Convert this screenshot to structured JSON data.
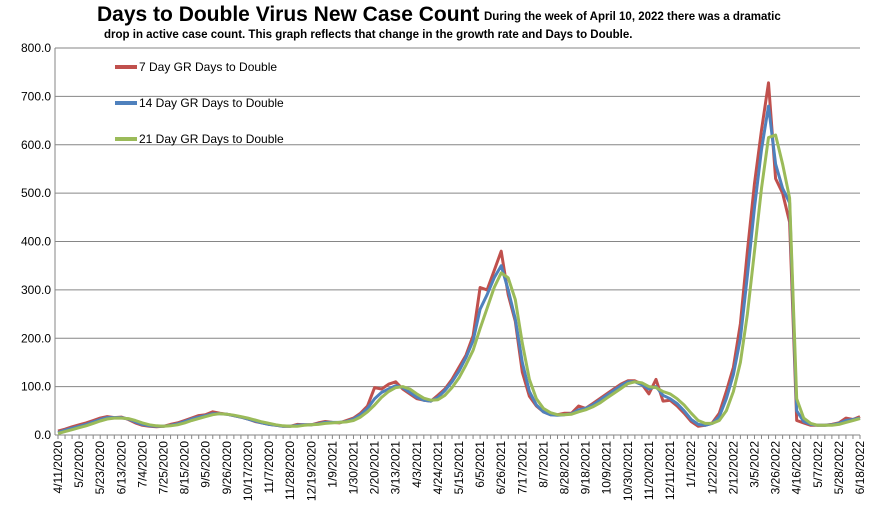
{
  "chart_data": {
    "type": "line",
    "title": "Days to Double Virus New Case Count",
    "subtitle_line1": "During the week of April 10, 2022 there was a dramatic",
    "subtitle_line2": "drop in active case count.  This graph reflects that change in the growth rate and Days to Double.",
    "ylim": [
      0,
      800
    ],
    "y_ticks": [
      "0.0",
      "100.0",
      "200.0",
      "300.0",
      "400.0",
      "500.0",
      "600.0",
      "700.0",
      "800.0"
    ],
    "x_ticks": [
      "4/11/2020",
      "5/2/2020",
      "5/23/2020",
      "6/13/2020",
      "7/4/2020",
      "7/25/2020",
      "8/15/2020",
      "9/5/2020",
      "9/26/2020",
      "10/17/2020",
      "11/7/2020",
      "11/28/2020",
      "12/19/2020",
      "1/9/2021",
      "1/30/2021",
      "2/20/2021",
      "3/13/2021",
      "4/3/2021",
      "4/24/2021",
      "5/15/2021",
      "6/5/2021",
      "6/26/2021",
      "7/17/2021",
      "8/7/2021",
      "8/28/2021",
      "9/18/2021",
      "10/9/2021",
      "10/30/2021",
      "11/20/2021",
      "12/11/2021",
      "1/1/2022",
      "1/22/2022",
      "2/12/2022",
      "3/5/2022",
      "3/26/2022",
      "4/16/2022",
      "5/7/2022",
      "5/28/2022",
      "6/18/2022"
    ],
    "grid": "horizontal",
    "legend_placement": "top-left",
    "series": [
      {
        "name": "7 Day GR Days to Double",
        "color": "#C0504D",
        "values": [
          8,
          12,
          17,
          21,
          25,
          30,
          35,
          38,
          36,
          37,
          32,
          25,
          20,
          18,
          17,
          18,
          22,
          25,
          30,
          35,
          40,
          42,
          48,
          45,
          43,
          40,
          37,
          33,
          28,
          25,
          22,
          20,
          18,
          18,
          22,
          21,
          21,
          25,
          28,
          26,
          25,
          30,
          35,
          45,
          60,
          98,
          95,
          105,
          110,
          95,
          85,
          75,
          72,
          70,
          82,
          95,
          115,
          140,
          165,
          205,
          305,
          300,
          340,
          380,
          290,
          235,
          130,
          80,
          60,
          48,
          42,
          42,
          45,
          45,
          60,
          55,
          65,
          75,
          85,
          95,
          105,
          112,
          112,
          105,
          85,
          115,
          70,
          72,
          60,
          45,
          28,
          18,
          20,
          25,
          45,
          90,
          140,
          230,
          380,
          520,
          630,
          728,
          530,
          500,
          440,
          30,
          25,
          20,
          20,
          20,
          22,
          25,
          35,
          32,
          38
        ]
      },
      {
        "name": "14 Day GR Days to Double",
        "color": "#4F81BD",
        "values": [
          5,
          10,
          14,
          18,
          22,
          27,
          32,
          36,
          36,
          36,
          33,
          27,
          22,
          19,
          18,
          18,
          20,
          23,
          28,
          33,
          37,
          40,
          44,
          44,
          43,
          40,
          37,
          33,
          29,
          25,
          22,
          20,
          18,
          18,
          20,
          21,
          21,
          23,
          26,
          26,
          26,
          28,
          33,
          42,
          55,
          75,
          88,
          95,
          102,
          98,
          88,
          78,
          72,
          70,
          78,
          92,
          110,
          132,
          160,
          195,
          260,
          290,
          325,
          350,
          300,
          240,
          150,
          90,
          62,
          48,
          42,
          41,
          42,
          44,
          52,
          55,
          62,
          72,
          82,
          92,
          102,
          110,
          110,
          104,
          95,
          100,
          82,
          75,
          65,
          50,
          32,
          22,
          20,
          24,
          38,
          75,
          125,
          200,
          330,
          470,
          590,
          680,
          560,
          510,
          480,
          50,
          28,
          22,
          20,
          20,
          21,
          24,
          30,
          32,
          35
        ]
      },
      {
        "name": "21 Day GR Days to Double",
        "color": "#9BBB59",
        "values": [
          3,
          7,
          11,
          15,
          19,
          24,
          29,
          33,
          35,
          35,
          34,
          30,
          25,
          21,
          19,
          18,
          19,
          21,
          25,
          30,
          34,
          38,
          42,
          44,
          43,
          41,
          38,
          35,
          31,
          27,
          24,
          21,
          19,
          18,
          18,
          20,
          21,
          22,
          24,
          25,
          26,
          27,
          30,
          37,
          48,
          62,
          78,
          90,
          98,
          100,
          95,
          85,
          76,
          72,
          73,
          82,
          98,
          118,
          145,
          175,
          220,
          262,
          305,
          335,
          325,
          280,
          190,
          115,
          75,
          55,
          46,
          42,
          42,
          43,
          48,
          52,
          58,
          66,
          76,
          86,
          96,
          106,
          110,
          108,
          100,
          98,
          90,
          85,
          75,
          62,
          45,
          30,
          24,
          24,
          30,
          50,
          90,
          150,
          250,
          380,
          510,
          615,
          620,
          560,
          490,
          75,
          35,
          24,
          20,
          20,
          20,
          22,
          26,
          30,
          34
        ]
      }
    ]
  }
}
